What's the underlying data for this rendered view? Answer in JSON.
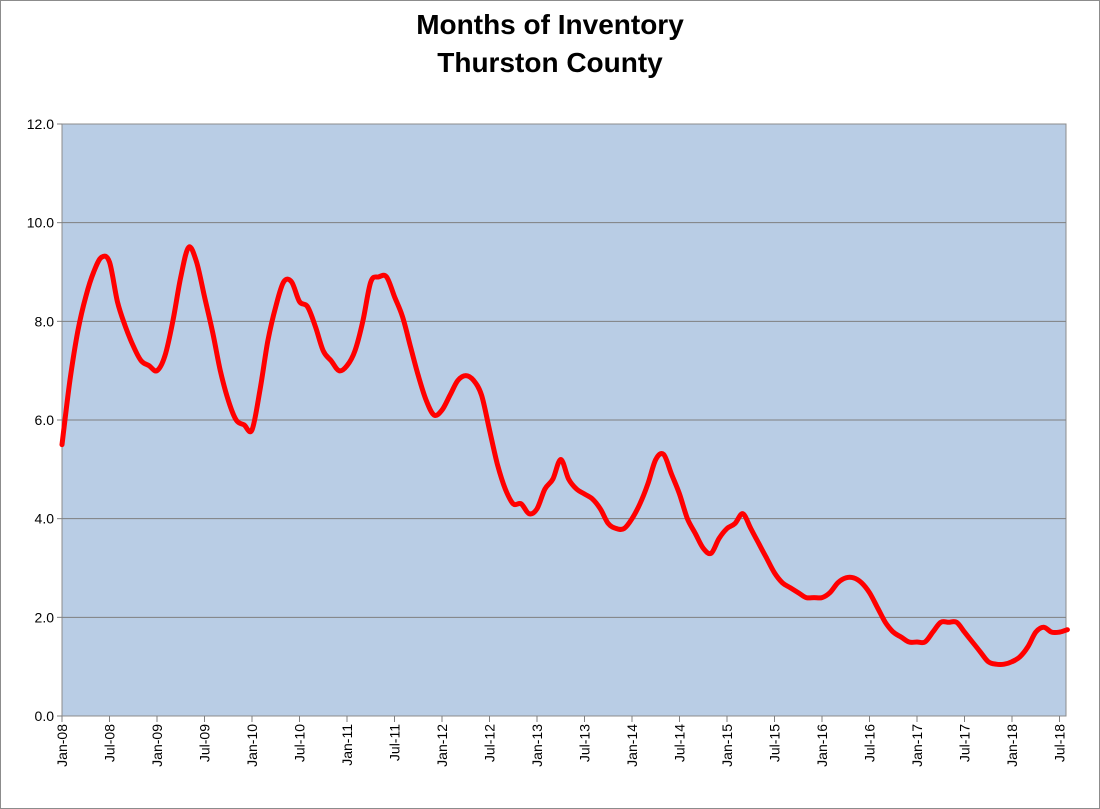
{
  "chart_data": {
    "type": "line",
    "title": [
      "Months of Inventory",
      "Thurston County"
    ],
    "xlabel": "",
    "ylabel": "",
    "ylim": [
      0,
      12
    ],
    "y_ticks": [
      "0.0",
      "2.0",
      "4.0",
      "6.0",
      "8.0",
      "10.0",
      "12.0"
    ],
    "x_tick_labels": [
      "Jan-08",
      "Jul-08",
      "Jan-09",
      "Jul-09",
      "Jan-10",
      "Jul-10",
      "Jan-11",
      "Jul-11",
      "Jan-12",
      "Jul-12",
      "Jan-13",
      "Jul-13",
      "Jan-14",
      "Jul-14",
      "Jan-15",
      "Jul-15",
      "Jan-16",
      "Jul-16",
      "Jan-17",
      "Jul-17",
      "Jan-18",
      "Jul-18"
    ],
    "grid": true,
    "plot_background": "#b9cde5",
    "series": [
      {
        "color": "#ff0000",
        "x": [
          "2008-01",
          "2008-02",
          "2008-03",
          "2008-04",
          "2008-05",
          "2008-06",
          "2008-07",
          "2008-08",
          "2008-09",
          "2008-10",
          "2008-11",
          "2008-12",
          "2009-01",
          "2009-02",
          "2009-03",
          "2009-04",
          "2009-05",
          "2009-06",
          "2009-07",
          "2009-08",
          "2009-09",
          "2009-10",
          "2009-11",
          "2009-12",
          "2010-01",
          "2010-02",
          "2010-03",
          "2010-04",
          "2010-05",
          "2010-06",
          "2010-07",
          "2010-08",
          "2010-09",
          "2010-10",
          "2010-11",
          "2010-12",
          "2011-01",
          "2011-02",
          "2011-03",
          "2011-04",
          "2011-05",
          "2011-06",
          "2011-07",
          "2011-08",
          "2011-09",
          "2011-10",
          "2011-11",
          "2011-12",
          "2012-01",
          "2012-02",
          "2012-03",
          "2012-04",
          "2012-05",
          "2012-06",
          "2012-07",
          "2012-08",
          "2012-09",
          "2012-10",
          "2012-11",
          "2012-12",
          "2013-01",
          "2013-02",
          "2013-03",
          "2013-04",
          "2013-05",
          "2013-06",
          "2013-07",
          "2013-08",
          "2013-09",
          "2013-10",
          "2013-11",
          "2013-12",
          "2014-01",
          "2014-02",
          "2014-03",
          "2014-04",
          "2014-05",
          "2014-06",
          "2014-07",
          "2014-08",
          "2014-09",
          "2014-10",
          "2014-11",
          "2014-12",
          "2015-01",
          "2015-02",
          "2015-03",
          "2015-04",
          "2015-05",
          "2015-06",
          "2015-07",
          "2015-08",
          "2015-09",
          "2015-10",
          "2015-11",
          "2015-12",
          "2016-01",
          "2016-02",
          "2016-03",
          "2016-04",
          "2016-05",
          "2016-06",
          "2016-07",
          "2016-08",
          "2016-09",
          "2016-10",
          "2016-11",
          "2016-12",
          "2017-01",
          "2017-02",
          "2017-03",
          "2017-04",
          "2017-05",
          "2017-06",
          "2017-07",
          "2017-08",
          "2017-09",
          "2017-10",
          "2017-11",
          "2017-12",
          "2018-01",
          "2018-02",
          "2018-03",
          "2018-04",
          "2018-05",
          "2018-06",
          "2018-07",
          "2018-08"
        ],
        "values": [
          5.5,
          6.8,
          7.8,
          8.5,
          9.0,
          9.3,
          9.2,
          8.4,
          7.9,
          7.5,
          7.2,
          7.1,
          7.0,
          7.3,
          8.0,
          8.9,
          9.5,
          9.2,
          8.5,
          7.8,
          7.0,
          6.4,
          6.0,
          5.9,
          5.8,
          6.6,
          7.6,
          8.3,
          8.8,
          8.8,
          8.4,
          8.3,
          7.9,
          7.4,
          7.2,
          7.0,
          7.1,
          7.4,
          8.0,
          8.8,
          8.9,
          8.9,
          8.5,
          8.1,
          7.5,
          6.9,
          6.4,
          6.1,
          6.2,
          6.5,
          6.8,
          6.9,
          6.8,
          6.5,
          5.8,
          5.1,
          4.6,
          4.3,
          4.3,
          4.1,
          4.2,
          4.6,
          4.8,
          5.2,
          4.8,
          4.6,
          4.5,
          4.4,
          4.2,
          3.9,
          3.8,
          3.8,
          4.0,
          4.3,
          4.7,
          5.2,
          5.3,
          4.9,
          4.5,
          4.0,
          3.7,
          3.4,
          3.3,
          3.6,
          3.8,
          3.9,
          4.1,
          3.8,
          3.5,
          3.2,
          2.9,
          2.7,
          2.6,
          2.5,
          2.4,
          2.4,
          2.4,
          2.5,
          2.7,
          2.8,
          2.8,
          2.7,
          2.5,
          2.2,
          1.9,
          1.7,
          1.6,
          1.5,
          1.5,
          1.5,
          1.7,
          1.9,
          1.9,
          1.9,
          1.7,
          1.5,
          1.3,
          1.1,
          1.05,
          1.05,
          1.1,
          1.2,
          1.4,
          1.7,
          1.8,
          1.7,
          1.7,
          1.75
        ]
      }
    ]
  }
}
